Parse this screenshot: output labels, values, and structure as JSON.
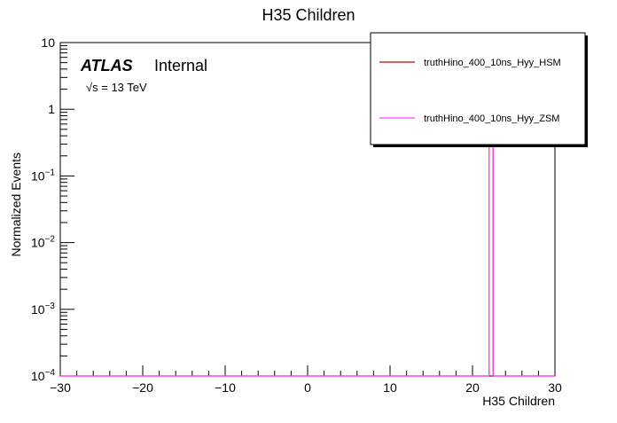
{
  "chart_data": {
    "type": "histogram",
    "title": "H35 Children",
    "x_label": "H35 Children",
    "y_label": "Normalized Events",
    "annotations": {
      "experiment": "ATLAS",
      "status": "Internal",
      "energy": "√s = 13 TeV"
    },
    "bins": [
      -30,
      22,
      22.5,
      30
    ],
    "series": [
      {
        "name": "truthHino_400_10ns_Hyy_HSM",
        "color": "#cc0000",
        "values": [
          0,
          1,
          0
        ]
      },
      {
        "name": "truthHino_400_10ns_Hyy_ZSM",
        "color": "#ff44ff",
        "values": [
          0,
          1,
          0
        ]
      }
    ],
    "xlim": [
      -30,
      30
    ],
    "xticks": [
      {
        "value": -30,
        "label": "−30"
      },
      {
        "value": -20,
        "label": "−20"
      },
      {
        "value": -10,
        "label": "−10"
      },
      0,
      10,
      20,
      30
    ],
    "ylim": [
      0.0001,
      10
    ],
    "yticks": [
      {
        "value": 0.0001,
        "label": "10−4"
      },
      {
        "value": 0.001,
        "label": "10−3"
      },
      {
        "value": 0.01,
        "label": "10−2"
      },
      {
        "value": 0.1,
        "label": "10−1"
      },
      1,
      10
    ],
    "log_y": true,
    "grid": false,
    "legend_position": "top-right"
  }
}
